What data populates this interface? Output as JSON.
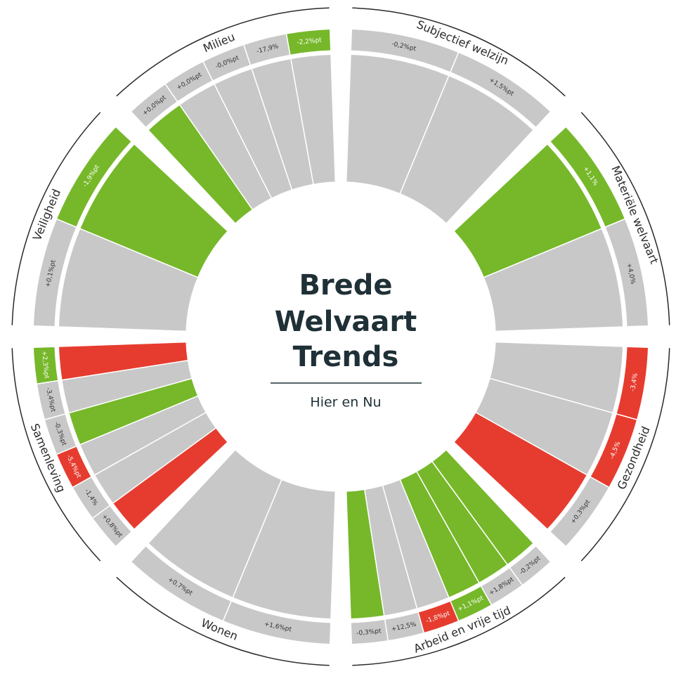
{
  "center": {
    "title_lines": [
      "Brede",
      "Welvaart",
      "Trends"
    ],
    "subtitle": "Hier en Nu"
  },
  "sectors": [
    {
      "name": "Subjectief welzijn",
      "indicators": [
        {
          "label": "-0,2%pt",
          "bar_color": "#c8c8c8",
          "label_color": "#c8c8c8"
        },
        {
          "label": "+1,5%pt",
          "bar_color": "#c8c8c8",
          "label_color": "#c8c8c8"
        }
      ]
    },
    {
      "name": "Materiële welvaart",
      "indicators": [
        {
          "label": "+1,1%",
          "bar_color": "#76b82a",
          "label_color": "#76b82a"
        },
        {
          "label": "+4,0%",
          "bar_color": "#c8c8c8",
          "label_color": "#c8c8c8"
        }
      ]
    },
    {
      "name": "Gezondheid",
      "indicators": [
        {
          "label": "-3,4%",
          "bar_color": "#c8c8c8",
          "label_color": "#e63c2f"
        },
        {
          "label": "-4,5%",
          "bar_color": "#c8c8c8",
          "label_color": "#e63c2f"
        },
        {
          "label": "+0,3%pt",
          "bar_color": "#e63c2f",
          "label_color": "#c8c8c8"
        }
      ]
    },
    {
      "name": "Arbeid en vrije tijd",
      "indicators": [
        {
          "label": "-0,2%pt",
          "bar_color": "#76b82a",
          "label_color": "#c8c8c8"
        },
        {
          "label": "+1,8%pt",
          "bar_color": "#76b82a",
          "label_color": "#c8c8c8"
        },
        {
          "label": "+1,1%pt",
          "bar_color": "#76b82a",
          "label_color": "#76b82a"
        },
        {
          "label": "-1,8%pt",
          "bar_color": "#c8c8c8",
          "label_color": "#e63c2f"
        },
        {
          "label": "+12,5%",
          "bar_color": "#c8c8c8",
          "label_color": "#c8c8c8"
        },
        {
          "label": "-0,3%pt",
          "bar_color": "#76b82a",
          "label_color": "#c8c8c8"
        }
      ]
    },
    {
      "name": "Wonen",
      "indicators": [
        {
          "label": "+1,6%pt",
          "bar_color": "#c8c8c8",
          "label_color": "#c8c8c8"
        },
        {
          "label": "+0,7%pt",
          "bar_color": "#c8c8c8",
          "label_color": "#c8c8c8"
        }
      ]
    },
    {
      "name": "Samenleving",
      "indicators": [
        {
          "label": "+0,8%pt",
          "bar_color": "#e63c2f",
          "label_color": "#c8c8c8"
        },
        {
          "label": "-1,4%",
          "bar_color": "#c8c8c8",
          "label_color": "#c8c8c8"
        },
        {
          "label": "-5,4%pt",
          "bar_color": "#c8c8c8",
          "label_color": "#e63c2f"
        },
        {
          "label": "-0,3%pt",
          "bar_color": "#76b82a",
          "label_color": "#c8c8c8"
        },
        {
          "label": "-3,4%pt",
          "bar_color": "#c8c8c8",
          "label_color": "#c8c8c8"
        },
        {
          "label": "+2,3%pt",
          "bar_color": "#e63c2f",
          "label_color": "#76b82a"
        }
      ]
    },
    {
      "name": "Veiligheid",
      "indicators": [
        {
          "label": "+0,1%pt",
          "bar_color": "#c8c8c8",
          "label_color": "#c8c8c8"
        },
        {
          "label": "-1,9%pt",
          "bar_color": "#76b82a",
          "label_color": "#76b82a"
        }
      ]
    },
    {
      "name": "Milieu",
      "indicators": [
        {
          "label": "+0,0%pt",
          "bar_color": "#76b82a",
          "label_color": "#c8c8c8"
        },
        {
          "label": "+0,0%pt",
          "bar_color": "#c8c8c8",
          "label_color": "#c8c8c8"
        },
        {
          "label": "-0,0%pt",
          "bar_color": "#c8c8c8",
          "label_color": "#c8c8c8"
        },
        {
          "label": "-17,9%",
          "bar_color": "#c8c8c8",
          "label_color": "#c8c8c8"
        },
        {
          "label": "-2,2%pt",
          "bar_color": "#c8c8c8",
          "label_color": "#76b82a"
        }
      ]
    }
  ]
}
